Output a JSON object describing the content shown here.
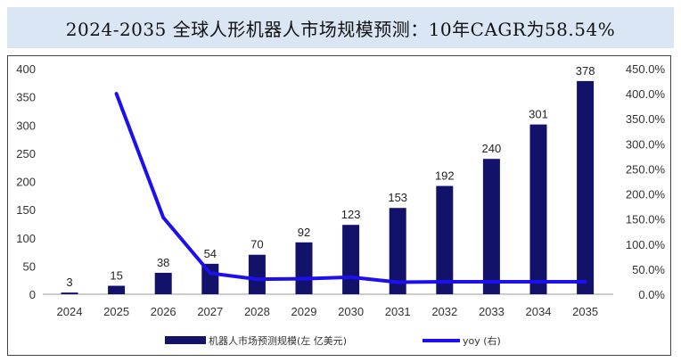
{
  "title": "2024-2035 全球人形机器人市场规模预测：10年CAGR为58.54%",
  "colors": {
    "bar": "#12126b",
    "line": "#1c10f0",
    "title_bg": "#dbe6f4"
  },
  "chart_data": {
    "type": "bar",
    "categories": [
      "2024",
      "2025",
      "2026",
      "2027",
      "2028",
      "2029",
      "2030",
      "2031",
      "2032",
      "2033",
      "2034",
      "2035"
    ],
    "series": [
      {
        "name": "机器人市场预测规模(左 亿美元)",
        "type": "bar",
        "axis": "left",
        "values": [
          3,
          15,
          38,
          54,
          70,
          92,
          123,
          153,
          192,
          240,
          301,
          378
        ]
      },
      {
        "name": "yoy (右)",
        "type": "line",
        "axis": "right",
        "values": [
          null,
          400,
          153,
          42,
          30,
          31,
          34,
          24,
          25,
          25,
          25,
          25
        ]
      }
    ],
    "data_labels": [
      "3",
      "15",
      "38",
      "54",
      "70",
      "92",
      "123",
      "153",
      "192",
      "240",
      "301",
      "378"
    ],
    "y_left": {
      "ylim": [
        0,
        400
      ],
      "ticks": [
        "0",
        "50",
        "100",
        "150",
        "200",
        "250",
        "300",
        "350",
        "400"
      ]
    },
    "y_right": {
      "ylim": [
        0,
        450
      ],
      "ticks": [
        "0.0%",
        "50.0%",
        "100.0%",
        "150.0%",
        "200.0%",
        "250.0%",
        "300.0%",
        "350.0%",
        "400.0%",
        "450.0%"
      ]
    },
    "legend": {
      "position": "bottom",
      "bar_label": "机器人市场预测规模(左 亿美元)",
      "line_label": "yoy (右)"
    },
    "grid": false
  }
}
